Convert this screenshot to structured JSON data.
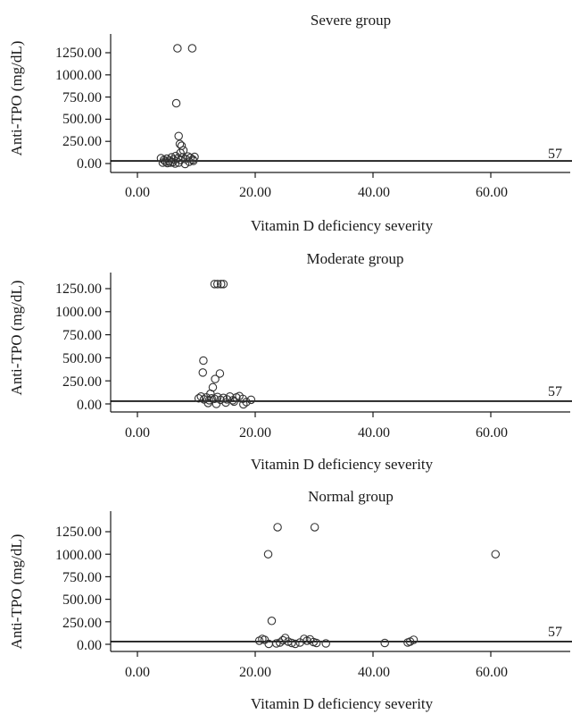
{
  "chart_data": [
    {
      "type": "scatter",
      "title": "Severe group",
      "xlabel": "Vitamin D deficiency severity",
      "ylabel": "Anti-TPO (mg/dL)",
      "xlim": [
        -3.5,
        71
      ],
      "ylim": [
        -80,
        1500
      ],
      "xticks": [
        "0.00",
        "20.00",
        "40.00",
        "60.00"
      ],
      "yticks": [
        "0.00",
        "250.00",
        "500.00",
        "750.00",
        "1000.00",
        "1250.00"
      ],
      "reference_line": {
        "y": 30,
        "label": "57"
      },
      "points": [
        {
          "x": 6.8,
          "y": 1300
        },
        {
          "x": 9.3,
          "y": 1300
        },
        {
          "x": 6.6,
          "y": 680
        },
        {
          "x": 7.0,
          "y": 310
        },
        {
          "x": 7.2,
          "y": 220
        },
        {
          "x": 7.5,
          "y": 200
        },
        {
          "x": 7.8,
          "y": 150
        },
        {
          "x": 7.3,
          "y": 120
        },
        {
          "x": 4.0,
          "y": 60
        },
        {
          "x": 4.5,
          "y": 40
        },
        {
          "x": 5.0,
          "y": 55
        },
        {
          "x": 5.4,
          "y": 30
        },
        {
          "x": 5.8,
          "y": 70
        },
        {
          "x": 6.1,
          "y": 45
        },
        {
          "x": 6.5,
          "y": 85
        },
        {
          "x": 6.9,
          "y": 60
        },
        {
          "x": 7.3,
          "y": 40
        },
        {
          "x": 7.7,
          "y": 70
        },
        {
          "x": 8.2,
          "y": 50
        },
        {
          "x": 8.6,
          "y": 80
        },
        {
          "x": 9.0,
          "y": 65
        },
        {
          "x": 9.4,
          "y": 45
        },
        {
          "x": 9.7,
          "y": 75
        },
        {
          "x": 4.3,
          "y": 10
        },
        {
          "x": 5.1,
          "y": 5
        },
        {
          "x": 6.0,
          "y": 15
        },
        {
          "x": 6.4,
          "y": 0
        },
        {
          "x": 7.0,
          "y": 10
        },
        {
          "x": 8.1,
          "y": -5
        },
        {
          "x": 8.8,
          "y": 20
        },
        {
          "x": 9.5,
          "y": 30
        },
        {
          "x": 4.8,
          "y": 20
        },
        {
          "x": 5.6,
          "y": 10
        }
      ]
    },
    {
      "type": "scatter",
      "title": "Moderate group",
      "xlabel": "Vitamin D deficiency severity",
      "ylabel": "Anti-TPO (mg/dL)",
      "xlim": [
        -3.5,
        71
      ],
      "ylim": [
        -80,
        1500
      ],
      "xticks": [
        "0.00",
        "20.00",
        "40.00",
        "60.00"
      ],
      "yticks": [
        "0.00",
        "250.00",
        "500.00",
        "750.00",
        "1000.00",
        "1250.00"
      ],
      "reference_line": {
        "y": 30,
        "label": "57"
      },
      "points": [
        {
          "x": 13.1,
          "y": 1300
        },
        {
          "x": 13.6,
          "y": 1300
        },
        {
          "x": 14.2,
          "y": 1300
        },
        {
          "x": 14.6,
          "y": 1300
        },
        {
          "x": 11.2,
          "y": 470
        },
        {
          "x": 11.1,
          "y": 340
        },
        {
          "x": 14.0,
          "y": 330
        },
        {
          "x": 13.2,
          "y": 270
        },
        {
          "x": 12.8,
          "y": 180
        },
        {
          "x": 12.4,
          "y": 110
        },
        {
          "x": 10.4,
          "y": 60
        },
        {
          "x": 10.8,
          "y": 80
        },
        {
          "x": 11.3,
          "y": 50
        },
        {
          "x": 11.7,
          "y": 70
        },
        {
          "x": 12.2,
          "y": 40
        },
        {
          "x": 12.6,
          "y": 60
        },
        {
          "x": 13.1,
          "y": 55
        },
        {
          "x": 13.6,
          "y": 75
        },
        {
          "x": 14.1,
          "y": 45
        },
        {
          "x": 14.6,
          "y": 65
        },
        {
          "x": 15.2,
          "y": 50
        },
        {
          "x": 15.7,
          "y": 80
        },
        {
          "x": 16.2,
          "y": 40
        },
        {
          "x": 16.8,
          "y": 70
        },
        {
          "x": 17.3,
          "y": 85
        },
        {
          "x": 17.9,
          "y": 55
        },
        {
          "x": 18.5,
          "y": 20
        },
        {
          "x": 19.3,
          "y": 45
        },
        {
          "x": 12.0,
          "y": 10
        },
        {
          "x": 13.4,
          "y": 0
        },
        {
          "x": 15.0,
          "y": 15
        },
        {
          "x": 16.4,
          "y": 25
        },
        {
          "x": 18.0,
          "y": -5
        }
      ]
    },
    {
      "type": "scatter",
      "title": "Normal group",
      "xlabel": "Vitamin D deficiency severity",
      "ylabel": "Anti-TPO (mg/dL)",
      "xlim": [
        -3.5,
        71
      ],
      "ylim": [
        -80,
        1500
      ],
      "xticks": [
        "0.00",
        "20.00",
        "40.00",
        "60.00"
      ],
      "yticks": [
        "0.00",
        "250.00",
        "500.00",
        "750.00",
        "1000.00",
        "1250.00"
      ],
      "reference_line": {
        "y": 30,
        "label": "57"
      },
      "points": [
        {
          "x": 23.8,
          "y": 1300
        },
        {
          "x": 30.1,
          "y": 1300
        },
        {
          "x": 22.2,
          "y": 1000
        },
        {
          "x": 60.8,
          "y": 1000
        },
        {
          "x": 22.8,
          "y": 260
        },
        {
          "x": 20.7,
          "y": 40
        },
        {
          "x": 21.2,
          "y": 60
        },
        {
          "x": 21.6,
          "y": 50
        },
        {
          "x": 22.3,
          "y": 5
        },
        {
          "x": 23.6,
          "y": 10
        },
        {
          "x": 24.2,
          "y": 20
        },
        {
          "x": 24.7,
          "y": 45
        },
        {
          "x": 25.1,
          "y": 70
        },
        {
          "x": 25.6,
          "y": 30
        },
        {
          "x": 26.2,
          "y": 15
        },
        {
          "x": 26.8,
          "y": 5
        },
        {
          "x": 27.6,
          "y": 20
        },
        {
          "x": 28.3,
          "y": 60
        },
        {
          "x": 28.8,
          "y": 40
        },
        {
          "x": 29.3,
          "y": 55
        },
        {
          "x": 29.9,
          "y": 25
        },
        {
          "x": 30.4,
          "y": 15
        },
        {
          "x": 32.0,
          "y": 10
        },
        {
          "x": 42.0,
          "y": 15
        },
        {
          "x": 45.9,
          "y": 20
        },
        {
          "x": 46.3,
          "y": 30
        },
        {
          "x": 46.9,
          "y": 50
        }
      ]
    }
  ]
}
